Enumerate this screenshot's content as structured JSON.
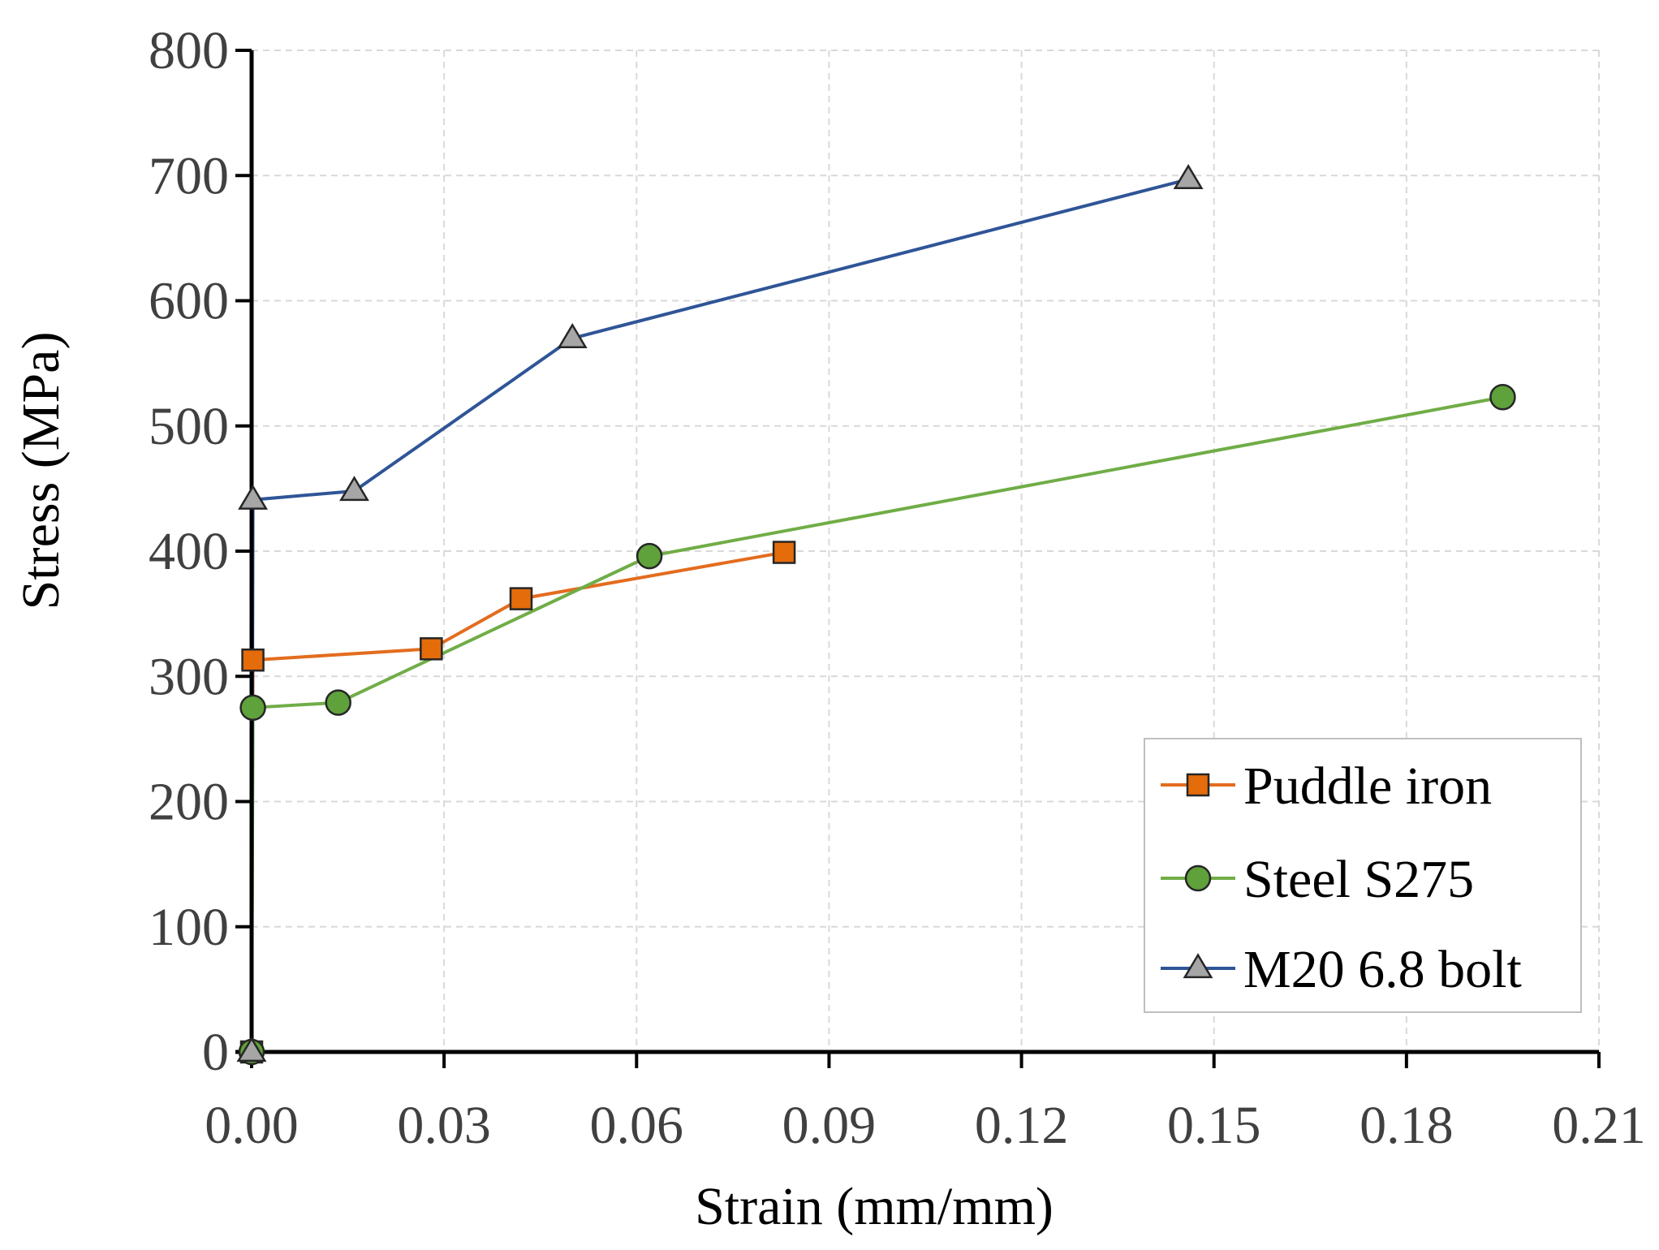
{
  "chart_data": {
    "type": "line",
    "xlabel": "Strain (mm/mm)",
    "ylabel": "Stress (MPa)",
    "xlim": [
      0,
      0.21
    ],
    "ylim": [
      0,
      800
    ],
    "x_ticks": [
      "0.00",
      "0.03",
      "0.06",
      "0.09",
      "0.12",
      "0.15",
      "0.18",
      "0.21"
    ],
    "x_tick_values": [
      0,
      0.03,
      0.06,
      0.09,
      0.12,
      0.15,
      0.18,
      0.21
    ],
    "y_ticks": [
      "0",
      "100",
      "200",
      "300",
      "400",
      "500",
      "600",
      "700",
      "800"
    ],
    "y_tick_values": [
      0,
      100,
      200,
      300,
      400,
      500,
      600,
      700,
      800
    ],
    "grid": true,
    "legend_position": "bottom-right",
    "series": [
      {
        "name": "Puddle iron",
        "color": "#E36C1E",
        "marker": "square",
        "marker_color": "#E46C0A",
        "x": [
          0,
          0.0002,
          0.028,
          0.042,
          0.083
        ],
        "y": [
          0,
          313,
          322,
          362,
          399
        ]
      },
      {
        "name": "Steel S275",
        "color": "#70AD47",
        "marker": "circle",
        "marker_color": "#5FA13A",
        "x": [
          0,
          0.0002,
          0.0135,
          0.062,
          0.195
        ],
        "y": [
          0,
          275,
          279,
          396,
          523
        ]
      },
      {
        "name": "M20 6.8 bolt",
        "color": "#2F5597",
        "marker": "triangle",
        "marker_color": "#A6A6A6",
        "x": [
          0,
          0.0002,
          0.016,
          0.05,
          0.146
        ],
        "y": [
          0,
          441,
          448,
          570,
          697
        ]
      }
    ]
  }
}
